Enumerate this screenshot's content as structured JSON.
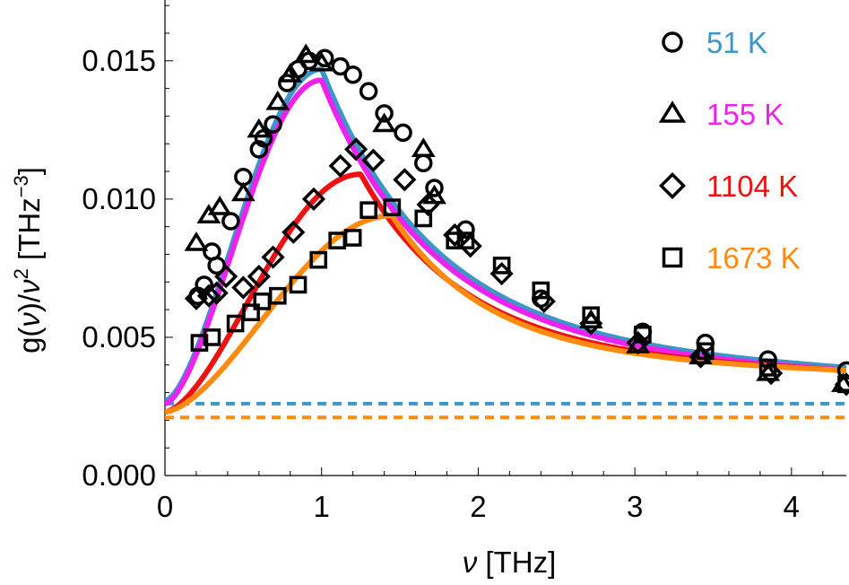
{
  "chart_data": {
    "type": "scatter",
    "xlabel": {
      "symbol": "ν",
      "unit": " [THz]"
    },
    "ylabel": {
      "prefix": "g(",
      "symbol": "ν",
      "mid": ")/",
      "symbol2": "ν",
      "sup": "2",
      "unit_pre": " [THz",
      "unit_sup": "−3",
      "unit_post": "]"
    },
    "xlim": [
      0,
      4.35
    ],
    "ylim": [
      0,
      0.0172
    ],
    "x_ticks": [
      0,
      1,
      2,
      3,
      4
    ],
    "x_tick_labels": [
      "0",
      "1",
      "2",
      "3",
      "4"
    ],
    "y_ticks": [
      0,
      0.005,
      0.01,
      0.015
    ],
    "y_tick_labels": [
      "0.000",
      "0.005",
      "0.010",
      "0.015"
    ],
    "legend_position": "top-right",
    "series": [
      {
        "name": "51 K",
        "color": "#3c96c8",
        "marker": "circle",
        "points": [
          [
            0.21,
            0.0065
          ],
          [
            0.25,
            0.0069
          ],
          [
            0.3,
            0.0081
          ],
          [
            0.33,
            0.0076
          ],
          [
            0.42,
            0.0092
          ],
          [
            0.5,
            0.0108
          ],
          [
            0.6,
            0.0118
          ],
          [
            0.63,
            0.0122
          ],
          [
            0.69,
            0.0127
          ],
          [
            0.78,
            0.0142
          ],
          [
            0.85,
            0.0147
          ],
          [
            0.92,
            0.015
          ],
          [
            1.02,
            0.0151
          ],
          [
            1.12,
            0.0148
          ],
          [
            1.2,
            0.0145
          ],
          [
            1.3,
            0.0139
          ],
          [
            1.4,
            0.0131
          ],
          [
            1.52,
            0.0124
          ],
          [
            1.65,
            0.0113
          ],
          [
            1.72,
            0.0104
          ],
          [
            1.92,
            0.0089
          ],
          [
            2.4,
            0.0064
          ],
          [
            3.05,
            0.0052
          ],
          [
            3.45,
            0.0048
          ],
          [
            3.85,
            0.0042
          ],
          [
            4.35,
            0.0038
          ]
        ],
        "fit": {
          "peak_x": 1.0,
          "peak_y": 0.0147,
          "y0": 0.0027,
          "tail_y": 0.0039
        },
        "baseline": 0.0026
      },
      {
        "name": "155 K",
        "color": "#ee22ee",
        "marker": "triangle",
        "points": [
          [
            0.2,
            0.0084
          ],
          [
            0.28,
            0.0094
          ],
          [
            0.35,
            0.0097
          ],
          [
            0.5,
            0.0102
          ],
          [
            0.6,
            0.0125
          ],
          [
            0.72,
            0.0135
          ],
          [
            0.8,
            0.0145
          ],
          [
            0.9,
            0.0152
          ],
          [
            1.0,
            0.0149
          ],
          [
            1.4,
            0.0127
          ],
          [
            1.65,
            0.0118
          ],
          [
            1.72,
            0.0101
          ],
          [
            2.72,
            0.0056
          ],
          [
            3.02,
            0.0047
          ],
          [
            3.42,
            0.0043
          ],
          [
            3.85,
            0.0037
          ],
          [
            4.33,
            0.0033
          ]
        ],
        "fit": {
          "peak_x": 1.0,
          "peak_y": 0.0143,
          "y0": 0.0026,
          "tail_y": 0.0038
        }
      },
      {
        "name": "1104 K",
        "color": "#ee1111",
        "marker": "diamond",
        "points": [
          [
            0.2,
            0.0064
          ],
          [
            0.28,
            0.0065
          ],
          [
            0.33,
            0.0066
          ],
          [
            0.39,
            0.0072
          ],
          [
            0.5,
            0.0068
          ],
          [
            0.6,
            0.0072
          ],
          [
            0.69,
            0.0079
          ],
          [
            0.82,
            0.0088
          ],
          [
            0.95,
            0.01
          ],
          [
            1.12,
            0.0112
          ],
          [
            1.22,
            0.0118
          ],
          [
            1.33,
            0.0114
          ],
          [
            1.53,
            0.0107
          ],
          [
            1.68,
            0.0098
          ],
          [
            1.85,
            0.0087
          ],
          [
            1.95,
            0.0083
          ],
          [
            2.15,
            0.0073
          ],
          [
            2.42,
            0.0063
          ],
          [
            2.72,
            0.0055
          ],
          [
            3.02,
            0.0048
          ],
          [
            3.42,
            0.0043
          ],
          [
            3.87,
            0.0037
          ],
          [
            4.35,
            0.0033
          ]
        ],
        "fit": {
          "peak_x": 1.25,
          "peak_y": 0.0109,
          "y0": 0.0023,
          "tail_y": 0.0038
        }
      },
      {
        "name": "1673 K",
        "color": "#ff8a10",
        "marker": "square",
        "points": [
          [
            0.22,
            0.0048
          ],
          [
            0.3,
            0.005
          ],
          [
            0.45,
            0.0055
          ],
          [
            0.55,
            0.0059
          ],
          [
            0.62,
            0.0063
          ],
          [
            0.72,
            0.0065
          ],
          [
            0.85,
            0.0069
          ],
          [
            0.98,
            0.0078
          ],
          [
            1.1,
            0.0085
          ],
          [
            1.2,
            0.0086
          ],
          [
            1.3,
            0.0096
          ],
          [
            1.45,
            0.0097
          ],
          [
            1.65,
            0.0093
          ],
          [
            1.85,
            0.0085
          ],
          [
            1.92,
            0.0085
          ],
          [
            2.15,
            0.0076
          ],
          [
            2.4,
            0.0067
          ],
          [
            2.72,
            0.0058
          ],
          [
            3.05,
            0.0051
          ],
          [
            3.45,
            0.0045
          ],
          [
            3.85,
            0.0039
          ],
          [
            4.35,
            0.0033
          ]
        ],
        "fit": {
          "peak_x": 1.45,
          "peak_y": 0.0094,
          "y0": 0.0023,
          "tail_y": 0.0038
        },
        "baseline": 0.0021
      }
    ]
  }
}
